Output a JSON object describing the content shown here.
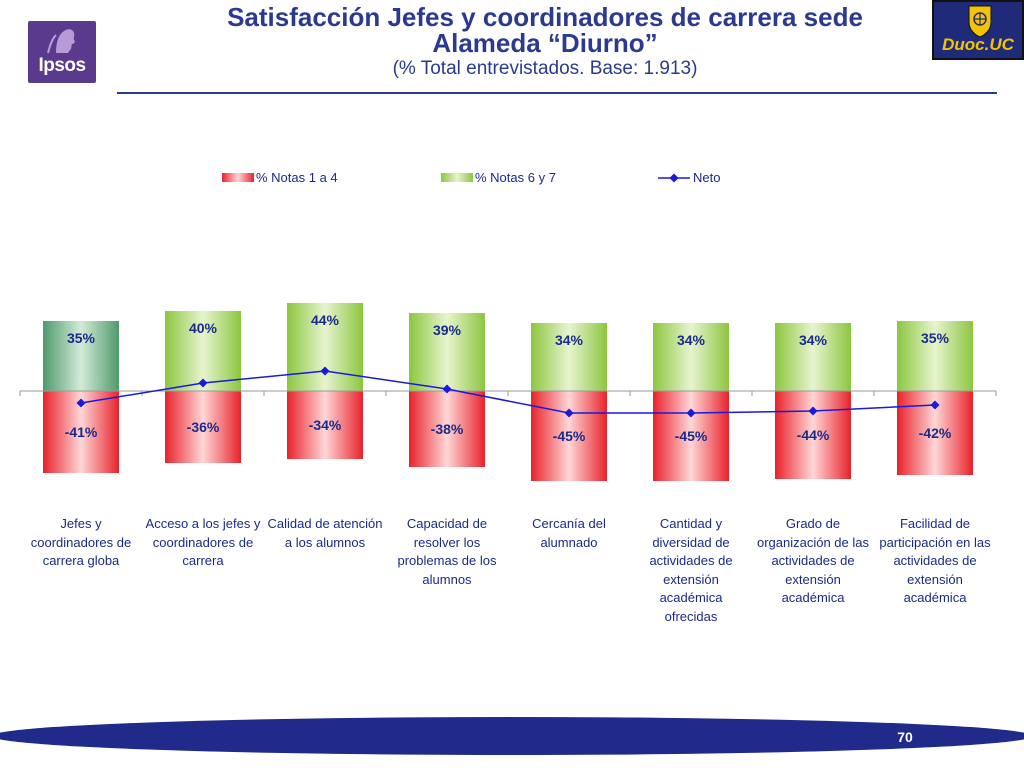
{
  "header": {
    "title_line1": "Satisfacción Jefes y coordinadores de carrera sede",
    "title_line2": "Alameda “Diurno”",
    "subtitle": "(% Total entrevistados. Base: 1.913)",
    "logo_left": "Ipsos",
    "logo_right": "Duoc.UC"
  },
  "colors": {
    "title": "#2b3a8f",
    "negative": "#e8222b",
    "positive": "#8cc63f",
    "first_positive": "#4e9a6a",
    "net_line": "#1a1ad8",
    "footer": "#1f2a8a"
  },
  "chart_data": {
    "type": "bar",
    "title": "",
    "categories": [
      "Jefes y coordinadores de carrera globa",
      "Acceso a los jefes y coordinadores de carrera",
      "Calidad de atención a los alumnos",
      "Capacidad de resolver los problemas de los alumnos",
      "Cercanía del alumnado",
      "Cantidad y diversidad de actividades de extensión académica ofrecidas",
      "Grado de organización de las actividades de extensión académica",
      "Facilidad de participación en las actividades de extensión académica"
    ],
    "series": [
      {
        "name": "% Notas 1 a 4",
        "type": "bar",
        "values": [
          -41,
          -36,
          -34,
          -38,
          -45,
          -45,
          -44,
          -42
        ],
        "labels": [
          "-41%",
          "-36%",
          "-34%",
          "-38%",
          "-45%",
          "-45%",
          "-44%",
          "-42%"
        ]
      },
      {
        "name": "% Notas 6 y 7",
        "type": "bar",
        "values": [
          35,
          40,
          44,
          39,
          34,
          34,
          34,
          35
        ],
        "labels": [
          "35%",
          "40%",
          "44%",
          "39%",
          "34%",
          "34%",
          "34%",
          "35%"
        ]
      },
      {
        "name": "Neto",
        "type": "line",
        "values": [
          -6,
          4,
          10,
          1,
          -11,
          -11,
          -10,
          -7
        ]
      }
    ],
    "legend_position": "top",
    "grid": false,
    "ylim": [
      -50,
      50
    ]
  },
  "footer": {
    "page_number": "70"
  }
}
